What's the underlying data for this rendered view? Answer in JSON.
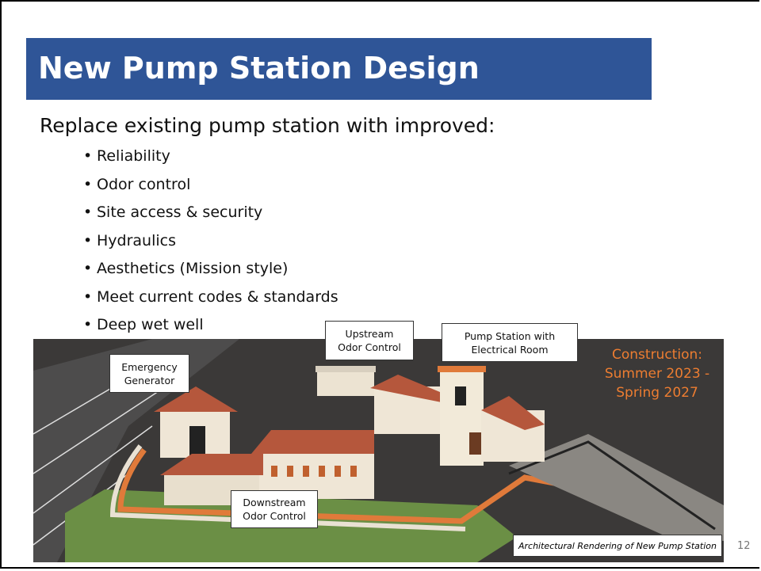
{
  "slide": {
    "title": "New Pump Station Design",
    "intro": "Replace existing pump station with improved:",
    "bullets": [
      "Reliability",
      "Odor control",
      "Site access & security",
      "Hydraulics",
      "Aesthetics (Mission style)",
      "Meet current codes & standards",
      "Deep wet well"
    ],
    "image": {
      "labels": [
        [
          "Emergency",
          "Generator"
        ],
        [
          "Upstream",
          "Odor Control"
        ],
        [
          "Pump Station with",
          "Electrical Room"
        ],
        [
          "Downstream",
          "Odor Control"
        ]
      ],
      "construction": [
        "Construction:",
        "Summer 2023 -",
        "Spring 2027"
      ],
      "caption": "Architectural Rendering of New Pump Station"
    },
    "page_number": "12"
  }
}
